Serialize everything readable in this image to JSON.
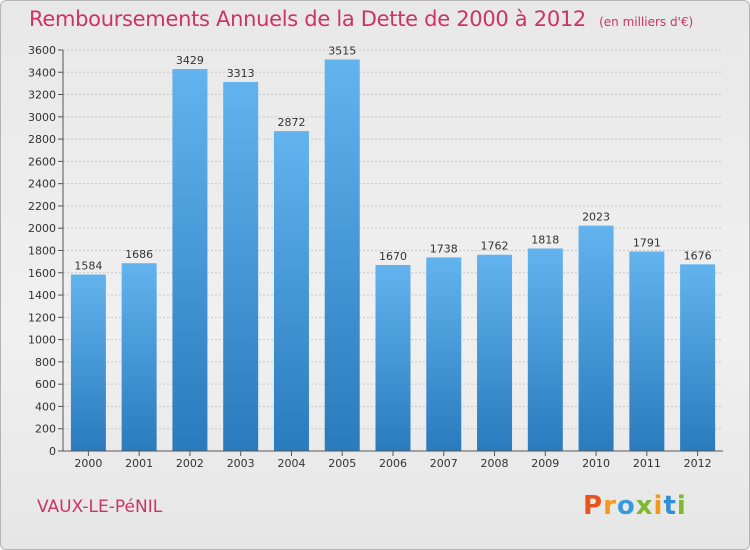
{
  "title": "Remboursements Annuels de la Dette de 2000 à 2012",
  "subtitle": "(en milliers d'€)",
  "commune": "VAUX-LE-PéNIL",
  "logo": {
    "letters": [
      "P",
      "r",
      "o",
      "x",
      "i",
      "t",
      "i"
    ],
    "colors": [
      "#e8541c",
      "#f39a1d",
      "#3a9ad9",
      "#7cb92f",
      "#f39a1d",
      "#2f8fd6",
      "#7cb92f"
    ]
  },
  "colors": {
    "bar_light": "#5eaeea",
    "bar_dark": "#2a7bbd",
    "title": "#cc3366"
  },
  "chart_data": {
    "type": "bar",
    "categories": [
      "2000",
      "2001",
      "2002",
      "2003",
      "2004",
      "2005",
      "2006",
      "2007",
      "2008",
      "2009",
      "2010",
      "2011",
      "2012"
    ],
    "values": [
      1584,
      1686,
      3429,
      3313,
      2872,
      3515,
      1670,
      1738,
      1762,
      1818,
      2023,
      1791,
      1676
    ],
    "y_ticks": [
      0,
      200,
      400,
      600,
      800,
      1000,
      1200,
      1400,
      1600,
      1800,
      2000,
      2200,
      2400,
      2600,
      2800,
      3000,
      3200,
      3400,
      3600
    ],
    "ylim": [
      0,
      3600
    ],
    "grid": true
  }
}
